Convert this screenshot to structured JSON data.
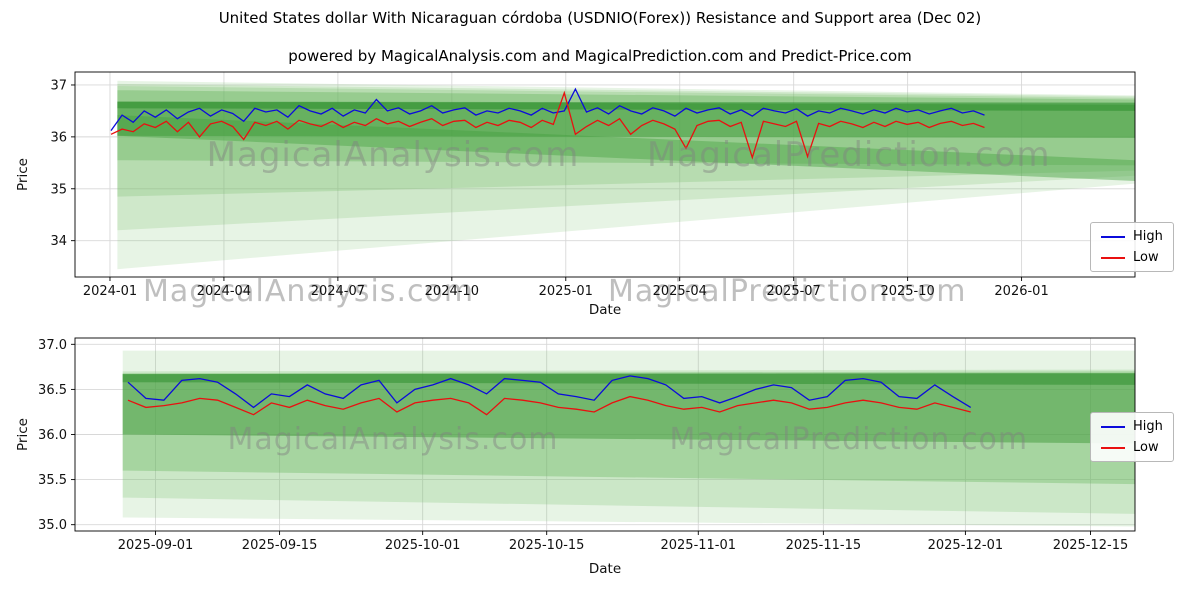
{
  "page": {
    "title": "United States dollar With Nicaraguan córdoba (USDNIO(Forex)) Resistance and Support area (Dec 02)",
    "subtitle": "powered by MagicalAnalysis.com and MagicalPrediction.com and Predict-Price.com"
  },
  "watermark_row": [
    "MagicalAnalysis.com",
    "MagicalPrediction.com"
  ],
  "chart_data": [
    {
      "type": "line",
      "title": "",
      "xlabel": "Date",
      "ylabel": "Price",
      "ylim": [
        33.3,
        37.25
      ],
      "grid": true,
      "legend_position": "right",
      "y_ticks": [
        {
          "v": 34,
          "label": "34"
        },
        {
          "v": 35,
          "label": "35"
        },
        {
          "v": 36,
          "label": "36"
        },
        {
          "v": 37,
          "label": "37"
        }
      ],
      "x_ticks": [
        {
          "f": 0.033,
          "label": "2024-01"
        },
        {
          "f": 0.1405,
          "label": "2024-04"
        },
        {
          "f": 0.248,
          "label": "2024-07"
        },
        {
          "f": 0.3555,
          "label": "2024-10"
        },
        {
          "f": 0.463,
          "label": "2025-01"
        },
        {
          "f": 0.5705,
          "label": "2025-04"
        },
        {
          "f": 0.678,
          "label": "2025-07"
        },
        {
          "f": 0.7855,
          "label": "2025-10"
        },
        {
          "f": 0.893,
          "label": "2026-01"
        }
      ],
      "watermarks": [
        {
          "text": "MagicalAnalysis.com",
          "fx": 0.3,
          "fy": 0.4
        },
        {
          "text": "MagicalPrediction.com",
          "fx": 0.73,
          "fy": 0.4
        }
      ],
      "bands": [
        {
          "color": "#79c06e",
          "opacity": 0.18,
          "points": [
            [
              0.04,
              37.08
            ],
            [
              1,
              36.8
            ],
            [
              1,
              35.1
            ],
            [
              0.04,
              33.45
            ]
          ]
        },
        {
          "color": "#79c06e",
          "opacity": 0.22,
          "points": [
            [
              0.04,
              37.02
            ],
            [
              1,
              36.78
            ],
            [
              1,
              35.25
            ],
            [
              0.04,
              34.2
            ]
          ]
        },
        {
          "color": "#79c06e",
          "opacity": 0.28,
          "points": [
            [
              0.04,
              36.98
            ],
            [
              1,
              36.75
            ],
            [
              1,
              35.35
            ],
            [
              0.04,
              34.85
            ]
          ]
        },
        {
          "color": "#5cb053",
          "opacity": 0.35,
          "points": [
            [
              0.04,
              36.9
            ],
            [
              1,
              36.72
            ],
            [
              1,
              35.45
            ],
            [
              0.04,
              35.55
            ]
          ]
        },
        {
          "color": "#4aa344",
          "opacity": 0.45,
          "points": [
            [
              0.04,
              36.42
            ],
            [
              1,
              35.55
            ],
            [
              1,
              35.15
            ],
            [
              0.04,
              36.02
            ]
          ]
        },
        {
          "color": "#3f9a3a",
          "opacity": 0.55,
          "points": [
            [
              0.04,
              36.68
            ],
            [
              1,
              36.62
            ],
            [
              1,
              35.98
            ],
            [
              0.04,
              36.02
            ]
          ]
        },
        {
          "color": "#2f8f2f",
          "opacity": 0.6,
          "points": [
            [
              0.04,
              36.68
            ],
            [
              1,
              36.66
            ],
            [
              1,
              36.5
            ],
            [
              0.04,
              36.55
            ]
          ]
        }
      ],
      "legend": [
        {
          "label": "High",
          "color": "#0b0bdb"
        },
        {
          "label": "Low",
          "color": "#e91010"
        }
      ],
      "series": [
        {
          "name": "High",
          "color": "#0b0bdb",
          "x_start": 0.034,
          "x_end": 0.858,
          "values": [
            36.12,
            36.42,
            36.28,
            36.5,
            36.38,
            36.52,
            36.35,
            36.48,
            36.55,
            36.4,
            36.52,
            36.45,
            36.3,
            36.55,
            36.48,
            36.52,
            36.38,
            36.6,
            36.5,
            36.44,
            36.55,
            36.4,
            36.52,
            36.46,
            36.72,
            36.5,
            36.56,
            36.44,
            36.5,
            36.6,
            36.46,
            36.52,
            36.56,
            36.42,
            36.5,
            36.46,
            36.55,
            36.5,
            36.42,
            36.55,
            36.46,
            36.5,
            36.92,
            36.48,
            36.56,
            36.44,
            36.6,
            36.5,
            36.44,
            36.56,
            36.5,
            36.4,
            36.55,
            36.46,
            36.52,
            36.56,
            36.44,
            36.52,
            36.4,
            36.55,
            36.5,
            36.46,
            36.54,
            36.4,
            36.5,
            36.46,
            36.55,
            36.5,
            36.44,
            36.52,
            36.46,
            36.55,
            36.48,
            36.52,
            36.44,
            36.5,
            36.55,
            36.46,
            36.5,
            36.42
          ]
        },
        {
          "name": "Low",
          "color": "#e91010",
          "x_start": 0.034,
          "x_end": 0.858,
          "values": [
            36.05,
            36.15,
            36.1,
            36.25,
            36.18,
            36.3,
            36.1,
            36.28,
            36.0,
            36.25,
            36.3,
            36.2,
            35.95,
            36.28,
            36.22,
            36.3,
            36.15,
            36.32,
            36.25,
            36.2,
            36.3,
            36.18,
            36.28,
            36.22,
            36.35,
            36.25,
            36.3,
            36.2,
            36.28,
            36.35,
            36.22,
            36.3,
            36.32,
            36.18,
            36.28,
            36.22,
            36.32,
            36.28,
            36.18,
            36.32,
            36.24,
            36.85,
            36.05,
            36.2,
            36.32,
            36.22,
            36.35,
            36.05,
            36.22,
            36.32,
            36.25,
            36.15,
            35.78,
            36.22,
            36.3,
            36.32,
            36.2,
            36.28,
            35.6,
            36.3,
            36.25,
            36.2,
            36.3,
            35.62,
            36.26,
            36.2,
            36.3,
            36.25,
            36.18,
            36.28,
            36.2,
            36.3,
            36.24,
            36.28,
            36.18,
            36.26,
            36.3,
            36.22,
            36.26,
            36.18
          ]
        }
      ]
    },
    {
      "type": "line",
      "title": "",
      "xlabel": "Date",
      "ylabel": "Price",
      "ylim": [
        34.93,
        37.07
      ],
      "grid": true,
      "legend_position": "right",
      "y_ticks": [
        {
          "v": 35.0,
          "label": "35.0"
        },
        {
          "v": 35.5,
          "label": "35.5"
        },
        {
          "v": 36.0,
          "label": "36.0"
        },
        {
          "v": 36.5,
          "label": "36.5"
        },
        {
          "v": 37.0,
          "label": "37.0"
        }
      ],
      "x_ticks": [
        {
          "f": 0.076,
          "label": "2025-09-01"
        },
        {
          "f": 0.193,
          "label": "2025-09-15"
        },
        {
          "f": 0.328,
          "label": "2025-10-01"
        },
        {
          "f": 0.445,
          "label": "2025-10-15"
        },
        {
          "f": 0.588,
          "label": "2025-11-01"
        },
        {
          "f": 0.706,
          "label": "2025-11-15"
        },
        {
          "f": 0.84,
          "label": "2025-12-01"
        },
        {
          "f": 0.958,
          "label": "2025-12-15"
        }
      ],
      "watermarks": [
        {
          "text": "MagicalAnalysis.com",
          "fx": 0.3,
          "fy": 0.52
        },
        {
          "text": "MagicalPrediction.com",
          "fx": 0.73,
          "fy": 0.52
        }
      ],
      "bands": [
        {
          "color": "#79c06e",
          "opacity": 0.18,
          "points": [
            [
              0.045,
              36.93
            ],
            [
              1,
              36.93
            ],
            [
              1,
              34.98
            ],
            [
              0.045,
              35.08
            ]
          ]
        },
        {
          "color": "#79c06e",
          "opacity": 0.25,
          "points": [
            [
              0.045,
              36.7
            ],
            [
              1,
              36.72
            ],
            [
              1,
              35.12
            ],
            [
              0.045,
              35.3
            ]
          ]
        },
        {
          "color": "#5cb053",
          "opacity": 0.33,
          "points": [
            [
              0.045,
              36.68
            ],
            [
              1,
              36.7
            ],
            [
              1,
              35.45
            ],
            [
              0.045,
              35.6
            ]
          ]
        },
        {
          "color": "#3f9a3a",
          "opacity": 0.5,
          "points": [
            [
              0.045,
              36.67
            ],
            [
              1,
              36.68
            ],
            [
              1,
              35.9
            ],
            [
              0.045,
              36.0
            ]
          ]
        },
        {
          "color": "#2f8f2f",
          "opacity": 0.55,
          "points": [
            [
              0.045,
              36.67
            ],
            [
              1,
              36.68
            ],
            [
              1,
              36.55
            ],
            [
              0.045,
              36.58
            ]
          ]
        }
      ],
      "legend": [
        {
          "label": "High",
          "color": "#0b0bdb"
        },
        {
          "label": "Low",
          "color": "#e91010"
        }
      ],
      "series": [
        {
          "name": "High",
          "color": "#0b0bdb",
          "x_start": 0.05,
          "x_end": 0.845,
          "values": [
            36.58,
            36.4,
            36.38,
            36.6,
            36.62,
            36.58,
            36.45,
            36.3,
            36.45,
            36.42,
            36.55,
            36.45,
            36.4,
            36.55,
            36.6,
            36.35,
            36.5,
            36.55,
            36.62,
            36.55,
            36.45,
            36.62,
            36.6,
            36.58,
            36.45,
            36.42,
            36.38,
            36.6,
            36.65,
            36.62,
            36.55,
            36.4,
            36.42,
            36.35,
            36.42,
            36.5,
            36.55,
            36.52,
            36.38,
            36.42,
            36.6,
            36.62,
            36.58,
            36.42,
            36.4,
            36.55,
            36.42,
            36.3
          ]
        },
        {
          "name": "Low",
          "color": "#e91010",
          "x_start": 0.05,
          "x_end": 0.845,
          "values": [
            36.38,
            36.3,
            36.32,
            36.35,
            36.4,
            36.38,
            36.3,
            36.22,
            36.35,
            36.3,
            36.38,
            36.32,
            36.28,
            36.35,
            36.4,
            36.25,
            36.35,
            36.38,
            36.4,
            36.35,
            36.22,
            36.4,
            36.38,
            36.35,
            36.3,
            36.28,
            36.25,
            36.35,
            36.42,
            36.38,
            36.32,
            36.28,
            36.3,
            36.25,
            36.32,
            36.35,
            36.38,
            36.35,
            36.28,
            36.3,
            36.35,
            36.38,
            36.35,
            36.3,
            36.28,
            36.35,
            36.3,
            36.25
          ]
        }
      ]
    }
  ]
}
